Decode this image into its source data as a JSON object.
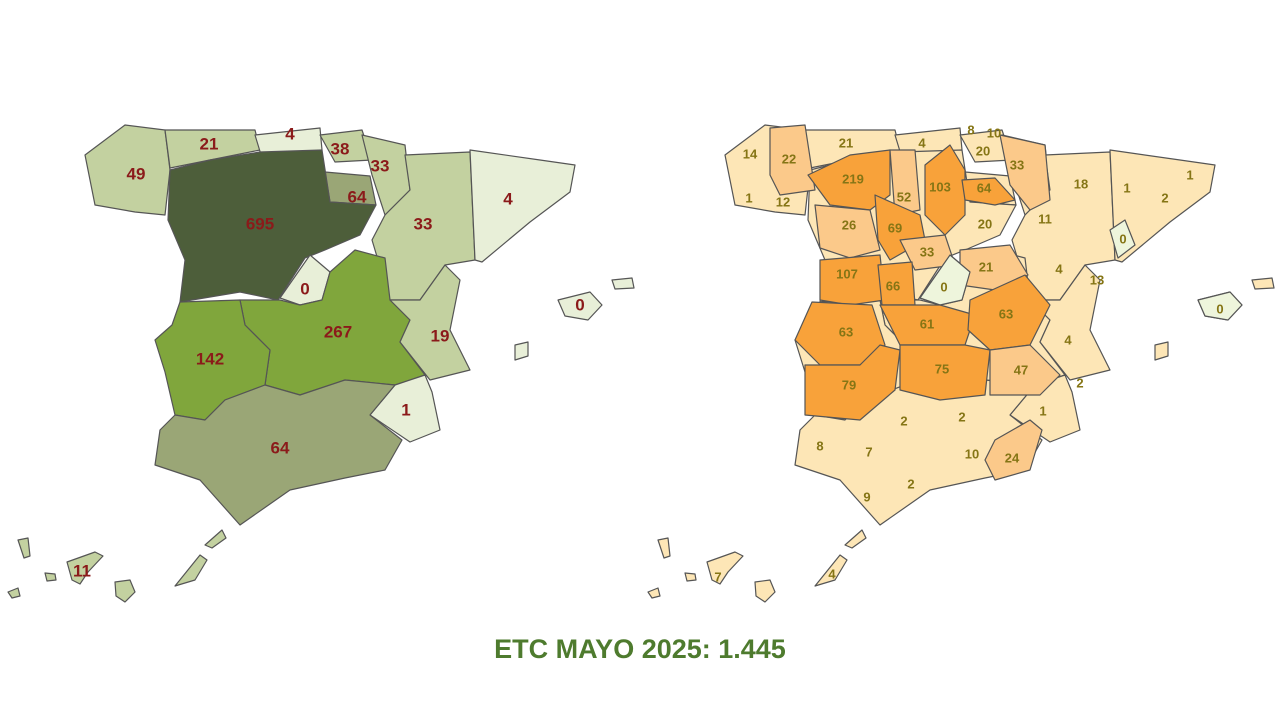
{
  "title": "ETC MAYO 2025: 1.445",
  "palettes": {
    "left": {
      "very_high": "#4d5e3a",
      "high": "#80a63c",
      "mid": "#9aa676",
      "low": "#c3d1a0",
      "zero": "#e8efd8"
    },
    "right": {
      "high": "#f8a23a",
      "mid": "#fbc98a",
      "low": "#fde6b6",
      "zero": "#eef5dc"
    },
    "left_label_color": "#8b1a1a",
    "right_label_color": "#857515"
  },
  "left_map": {
    "regions": [
      {
        "value": "49",
        "level": "low"
      },
      {
        "value": "21",
        "level": "low"
      },
      {
        "value": "4",
        "level": "zero"
      },
      {
        "value": "38",
        "level": "low"
      },
      {
        "value": "33",
        "level": "low"
      },
      {
        "value": "64",
        "level": "mid"
      },
      {
        "value": "695",
        "level": "very_high"
      },
      {
        "value": "33",
        "level": "low"
      },
      {
        "value": "4",
        "level": "zero"
      },
      {
        "value": "0",
        "level": "zero"
      },
      {
        "value": "267",
        "level": "high"
      },
      {
        "value": "142",
        "level": "high"
      },
      {
        "value": "19",
        "level": "low"
      },
      {
        "value": "1",
        "level": "zero"
      },
      {
        "value": "64",
        "level": "mid"
      },
      {
        "value": "0",
        "level": "zero"
      },
      {
        "value": "11",
        "level": "low"
      }
    ]
  },
  "right_map": {
    "provinces": [
      {
        "value": "14",
        "level": "low"
      },
      {
        "value": "22",
        "level": "mid"
      },
      {
        "value": "21",
        "level": "low"
      },
      {
        "value": "4",
        "level": "low"
      },
      {
        "value": "8",
        "level": "low"
      },
      {
        "value": "10",
        "level": "low"
      },
      {
        "value": "20",
        "level": "low"
      },
      {
        "value": "33",
        "level": "mid"
      },
      {
        "value": "1",
        "level": "low"
      },
      {
        "value": "12",
        "level": "low"
      },
      {
        "value": "219",
        "level": "high"
      },
      {
        "value": "52",
        "level": "mid"
      },
      {
        "value": "103",
        "level": "high"
      },
      {
        "value": "64",
        "level": "high"
      },
      {
        "value": "18",
        "level": "low"
      },
      {
        "value": "1",
        "level": "low"
      },
      {
        "value": "1",
        "level": "low"
      },
      {
        "value": "2",
        "level": "low"
      },
      {
        "value": "26",
        "level": "mid"
      },
      {
        "value": "69",
        "level": "high"
      },
      {
        "value": "20",
        "level": "low"
      },
      {
        "value": "11",
        "level": "low"
      },
      {
        "value": "0",
        "level": "zero"
      },
      {
        "value": "33",
        "level": "mid"
      },
      {
        "value": "21",
        "level": "mid"
      },
      {
        "value": "4",
        "level": "low"
      },
      {
        "value": "13",
        "level": "low"
      },
      {
        "value": "107",
        "level": "high"
      },
      {
        "value": "66",
        "level": "high"
      },
      {
        "value": "0",
        "level": "zero"
      },
      {
        "value": "63",
        "level": "high"
      },
      {
        "value": "61",
        "level": "high"
      },
      {
        "value": "63",
        "level": "high"
      },
      {
        "value": "4",
        "level": "low"
      },
      {
        "value": "0",
        "level": "zero"
      },
      {
        "value": "79",
        "level": "high"
      },
      {
        "value": "75",
        "level": "high"
      },
      {
        "value": "47",
        "level": "mid"
      },
      {
        "value": "2",
        "level": "low"
      },
      {
        "value": "1",
        "level": "low"
      },
      {
        "value": "2",
        "level": "low"
      },
      {
        "value": "2",
        "level": "low"
      },
      {
        "value": "8",
        "level": "low"
      },
      {
        "value": "7",
        "level": "low"
      },
      {
        "value": "10",
        "level": "low"
      },
      {
        "value": "24",
        "level": "mid"
      },
      {
        "value": "2",
        "level": "low"
      },
      {
        "value": "9",
        "level": "low"
      },
      {
        "value": "7",
        "level": "low"
      },
      {
        "value": "4",
        "level": "low"
      }
    ]
  }
}
